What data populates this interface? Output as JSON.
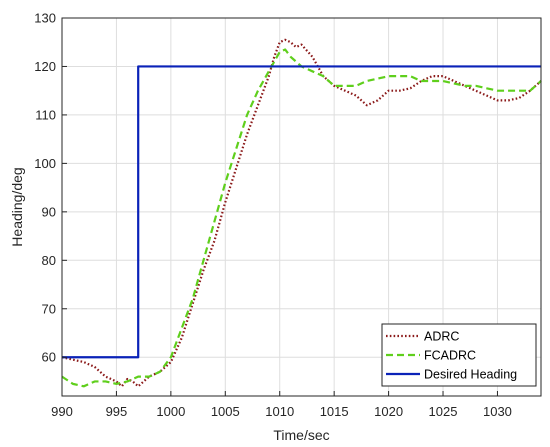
{
  "chart_data": {
    "type": "line",
    "xlabel": "Time/sec",
    "ylabel": "Heading/deg",
    "xlim": [
      990,
      1034
    ],
    "ylim": [
      52,
      130
    ],
    "xticks": [
      990,
      995,
      1000,
      1005,
      1010,
      1015,
      1020,
      1025,
      1030
    ],
    "yticks": [
      60,
      70,
      80,
      90,
      100,
      110,
      120,
      130
    ],
    "grid": true,
    "legend_position": "bottom-right",
    "series": [
      {
        "name": "ADRC",
        "color": "#8b1a1a",
        "style": "dotted",
        "x": [
          990,
          991,
          992,
          993,
          994,
          995,
          995.5,
          996,
          996.5,
          997,
          997.5,
          998,
          999,
          1000,
          1001,
          1002,
          1003,
          1004,
          1005,
          1006,
          1007,
          1008,
          1009,
          1009.5,
          1010,
          1010.5,
          1011,
          1011.5,
          1012,
          1013,
          1014,
          1015,
          1016,
          1017,
          1018,
          1019,
          1020,
          1021,
          1022,
          1023,
          1024,
          1025,
          1026,
          1027,
          1028,
          1029,
          1030,
          1031,
          1032,
          1033,
          1034
        ],
        "y": [
          60,
          59.5,
          59,
          58,
          56,
          55,
          54,
          55.5,
          55,
          54,
          55,
          56,
          57,
          59,
          64,
          71,
          78,
          84,
          92,
          99,
          106,
          112,
          118,
          122,
          125,
          125.5,
          125,
          124,
          124.5,
          122,
          118,
          116,
          115,
          114,
          112,
          113,
          115,
          115,
          115.5,
          117,
          118,
          118,
          117,
          116,
          115,
          114,
          113,
          113,
          113.5,
          115,
          117
        ]
      },
      {
        "name": "FCADRC",
        "color": "#5fcf1c",
        "style": "dashed",
        "x": [
          990,
          991,
          992,
          993,
          994,
          995,
          996,
          997,
          998,
          999,
          1000,
          1001,
          1002,
          1003,
          1004,
          1005,
          1006,
          1007,
          1008,
          1009,
          1009.5,
          1010,
          1010.5,
          1011,
          1012,
          1013,
          1014,
          1015,
          1016,
          1017,
          1018,
          1019,
          1020,
          1021,
          1022,
          1023,
          1024,
          1025,
          1026,
          1027,
          1028,
          1029,
          1030,
          1031,
          1032,
          1033,
          1034
        ],
        "y": [
          56,
          54.5,
          54,
          55,
          55,
          54.5,
          55,
          56,
          56,
          57,
          60,
          66,
          72,
          80,
          88,
          96,
          103,
          110,
          115,
          119,
          121,
          123,
          123.5,
          122,
          120,
          119,
          118,
          116,
          116,
          116,
          117,
          117.5,
          118,
          118,
          118,
          117,
          117,
          117,
          116.5,
          116,
          116,
          115.5,
          115,
          115,
          115,
          115,
          117
        ]
      },
      {
        "name": "Desired Heading",
        "color": "#0a22b8",
        "style": "solid",
        "x": [
          990,
          997,
          997,
          1034
        ],
        "y": [
          60,
          60,
          120,
          120
        ]
      }
    ]
  }
}
